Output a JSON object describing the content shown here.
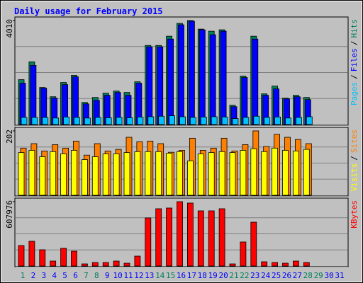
{
  "chart_data": [
    {
      "type": "bar",
      "title": "Daily usage for February 2015",
      "ylim": [
        0,
        4010
      ],
      "yticks": [
        4010
      ],
      "legend_separator": "/",
      "series": [
        {
          "name": "Hits",
          "color": "#00805c",
          "values": [
            1730,
            2417,
            1428,
            1071,
            1620,
            1895,
            851,
            1044,
            1208,
            1291,
            1236,
            1648,
            3049,
            3049,
            3406,
            3900,
            4010,
            3680,
            3598,
            3653,
            742,
            1868,
            3406,
            1181,
            1483,
            1016,
            1126,
            1044,
            null,
            null,
            null
          ]
        },
        {
          "name": "Files",
          "color": "#0000ff",
          "values": [
            1593,
            2280,
            1400,
            1016,
            1538,
            1840,
            796,
            934,
            1126,
            1236,
            1126,
            1593,
            2994,
            2994,
            3296,
            3845,
            3982,
            3653,
            3461,
            3598,
            687,
            1813,
            3296,
            1126,
            1373,
            989,
            1071,
            961,
            null,
            null,
            null
          ]
        },
        {
          "name": "Pages",
          "color": "#00c0ff",
          "values": [
            275,
            275,
            275,
            250,
            290,
            275,
            250,
            275,
            260,
            275,
            260,
            290,
            300,
            320,
            340,
            300,
            275,
            290,
            300,
            290,
            230,
            275,
            320,
            275,
            290,
            250,
            275,
            300,
            null,
            null,
            null
          ]
        }
      ]
    },
    {
      "type": "bar",
      "ylim": [
        0,
        202
      ],
      "yticks": [
        202
      ],
      "legend_separator": "/",
      "series": [
        {
          "name": "Sites",
          "color": "#ff8000",
          "values": [
            148,
            162,
            139,
            159,
            148,
            170,
            126,
            162,
            139,
            144,
            182,
            168,
            170,
            162,
            135,
            141,
            179,
            141,
            148,
            179,
            139,
            159,
            202,
            153,
            191,
            182,
            175,
            162,
            null,
            null,
            null
          ]
        },
        {
          "name": "Visits",
          "color": "#ffff00",
          "values": [
            134,
            141,
            121,
            137,
            130,
            141,
            112,
            121,
            130,
            130,
            134,
            137,
            137,
            137,
            132,
            137,
            108,
            130,
            134,
            137,
            134,
            141,
            146,
            137,
            148,
            141,
            139,
            144,
            null,
            null,
            null
          ]
        }
      ]
    },
    {
      "type": "bar",
      "ylim": [
        0,
        607976
      ],
      "yticks": [
        607976
      ],
      "categories": [
        "1",
        "2",
        "3",
        "4",
        "5",
        "6",
        "7",
        "8",
        "9",
        "10",
        "11",
        "12",
        "13",
        "14",
        "15",
        "16",
        "17",
        "18",
        "19",
        "20",
        "21",
        "22",
        "23",
        "24",
        "25",
        "26",
        "27",
        "28",
        "29",
        "30",
        "31"
      ],
      "category_colors": [
        "#00805c",
        "#0000ff",
        "#0000ff",
        "#0000ff",
        "#0000ff",
        "#0000ff",
        "#00805c",
        "#00805c",
        "#0000ff",
        "#0000ff",
        "#0000ff",
        "#0000ff",
        "#0000ff",
        "#00805c",
        "#00805c",
        "#0000ff",
        "#0000ff",
        "#0000ff",
        "#0000ff",
        "#0000ff",
        "#00805c",
        "#00805c",
        "#0000ff",
        "#0000ff",
        "#0000ff",
        "#0000ff",
        "#0000ff",
        "#00805c",
        "#00805c",
        "#0000ff",
        "#0000ff"
      ],
      "series": [
        {
          "name": "KBytes",
          "color": "#ff0000",
          "values": [
            193750,
            233838,
            153663,
            46767,
            167025,
            140303,
            20043,
            33405,
            33405,
            46767,
            26724,
            93534,
            454311,
            541167,
            547848,
            607976,
            594614,
            521121,
            521121,
            541167,
            20043,
            227157,
            414225,
            40086,
            33405,
            26724,
            46767,
            33405,
            null,
            null,
            null
          ]
        }
      ]
    }
  ]
}
